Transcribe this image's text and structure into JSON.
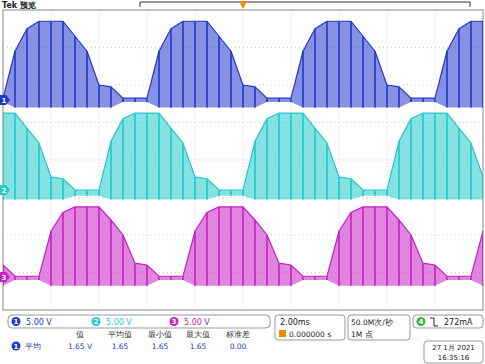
{
  "header": {
    "title": "Tek 预览"
  },
  "chart_data": {
    "type": "line",
    "x": [
      -10,
      -9.5,
      -9,
      -8.5,
      -8,
      -7.5,
      -7,
      -6.5,
      -6,
      -5.5,
      -5,
      -4.5,
      -4,
      -3.5,
      -3,
      -2.5,
      -2,
      -1.5,
      -1,
      -0.5,
      0,
      0.5,
      1,
      1.5,
      2,
      2.5,
      3,
      3.5,
      4,
      4.5,
      5,
      5.5,
      6,
      6.5,
      7,
      7.5,
      8,
      8.5,
      9,
      9.5,
      10
    ],
    "xlim": [
      -10,
      10
    ],
    "ylim": [
      -4,
      4
    ],
    "xticks": [
      -10,
      -8,
      -6,
      -4,
      -2,
      0,
      2,
      4,
      6,
      8,
      10
    ],
    "yticks": [
      -4,
      -3,
      -2,
      -1,
      0,
      1,
      2,
      3,
      4
    ],
    "grid": true,
    "tick_labels": false,
    "series": [
      {
        "name": "1",
        "color": "#2238c8",
        "offset": 1.6,
        "values": [
          1.65,
          2.9,
          3.5,
          3.7,
          3.7,
          3.7,
          3.3,
          2.9,
          2.0,
          1.95,
          1.65,
          1.65,
          1.65,
          2.9,
          3.5,
          3.7,
          3.7,
          3.7,
          3.3,
          2.9,
          2.0,
          1.95,
          1.65,
          1.65,
          1.65,
          2.9,
          3.5,
          3.7,
          3.7,
          3.7,
          3.3,
          2.9,
          2.0,
          1.95,
          1.65,
          1.65,
          1.65,
          2.9,
          3.5,
          3.7,
          3.7
        ],
        "low": [
          1.55,
          1.4,
          1.4,
          1.4,
          1.4,
          1.4,
          1.4,
          1.4,
          1.4,
          1.4,
          1.55,
          1.55,
          1.55,
          1.4,
          1.4,
          1.4,
          1.4,
          1.4,
          1.4,
          1.4,
          1.4,
          1.4,
          1.55,
          1.55,
          1.55,
          1.4,
          1.4,
          1.4,
          1.4,
          1.4,
          1.4,
          1.4,
          1.4,
          1.4,
          1.55,
          1.55,
          1.55,
          1.4,
          1.4,
          1.4,
          1.4
        ]
      },
      {
        "name": "2",
        "color": "#22c8cc",
        "offset": -0.8,
        "values": [
          1.25,
          1.25,
          0.85,
          0.45,
          -0.45,
          -0.5,
          -0.8,
          -0.8,
          -0.8,
          0.5,
          1.1,
          1.25,
          1.25,
          1.25,
          0.85,
          0.45,
          -0.45,
          -0.5,
          -0.8,
          -0.8,
          -0.8,
          0.5,
          1.1,
          1.25,
          1.25,
          1.25,
          0.85,
          0.45,
          -0.45,
          -0.5,
          -0.8,
          -0.8,
          -0.8,
          0.5,
          1.1,
          1.25,
          1.25,
          1.25,
          0.85,
          0.45,
          -0.45
        ],
        "low": [
          -1.05,
          -1.05,
          -1.05,
          -1.05,
          -1.05,
          -1.05,
          -0.95,
          -0.95,
          -0.95,
          -1.05,
          -1.05,
          -1.05,
          -1.05,
          -1.05,
          -1.05,
          -1.05,
          -1.05,
          -1.05,
          -0.95,
          -0.95,
          -0.95,
          -1.05,
          -1.05,
          -1.05,
          -1.05,
          -1.05,
          -1.05,
          -1.05,
          -1.05,
          -1.05,
          -0.95,
          -0.95,
          -0.95,
          -1.05,
          -1.05,
          -1.05,
          -1.05,
          -1.05,
          -1.05,
          -1.05,
          -1.05
        ]
      },
      {
        "name": "3",
        "color": "#c421c4",
        "offset": -3.12,
        "values": [
          -2.8,
          -3.1,
          -3.1,
          -3.1,
          -1.9,
          -1.4,
          -1.25,
          -1.25,
          -1.25,
          -1.6,
          -2.0,
          -2.75,
          -2.8,
          -3.1,
          -3.1,
          -3.1,
          -1.9,
          -1.4,
          -1.25,
          -1.25,
          -1.25,
          -1.6,
          -2.0,
          -2.75,
          -2.8,
          -3.1,
          -3.1,
          -3.1,
          -1.9,
          -1.4,
          -1.25,
          -1.25,
          -1.25,
          -1.6,
          -2.0,
          -2.75,
          -2.8,
          -3.1,
          -3.1,
          -3.1,
          -1.9
        ],
        "low": [
          -3.35,
          -3.2,
          -3.2,
          -3.2,
          -3.35,
          -3.35,
          -3.35,
          -3.35,
          -3.35,
          -3.35,
          -3.35,
          -3.35,
          -3.35,
          -3.2,
          -3.2,
          -3.2,
          -3.35,
          -3.35,
          -3.35,
          -3.35,
          -3.35,
          -3.35,
          -3.35,
          -3.35,
          -3.35,
          -3.2,
          -3.2,
          -3.2,
          -3.35,
          -3.35,
          -3.35,
          -3.35,
          -3.35,
          -3.35,
          -3.35,
          -3.35,
          -3.35,
          -3.2,
          -3.2,
          -3.2,
          -3.35
        ]
      }
    ]
  },
  "channel_settings": [
    {
      "channel": "1",
      "scale": "5.00 V"
    },
    {
      "channel": "2",
      "scale": "5.00 V"
    },
    {
      "channel": "3",
      "scale": "5.00 V"
    }
  ],
  "measurement": {
    "headers": [
      "值",
      "平均值",
      "最小值",
      "最大值",
      "标准差"
    ],
    "rows": [
      {
        "channel": "1",
        "label": "平均",
        "cells": [
          "1.65 V",
          "1.65",
          "1.65",
          "1.65",
          "0.00"
        ]
      }
    ]
  },
  "acquisition": {
    "timebase": "2.00ms",
    "trigger_position": "0.000000 s",
    "sample_rate": "50.0M次/秒",
    "record_length": "1M 点"
  },
  "trigger": {
    "channel": "4",
    "color": "#3cb043",
    "level": "272mA"
  },
  "timestamp": {
    "date": "27 1月 2021",
    "time": "16:35:16"
  }
}
